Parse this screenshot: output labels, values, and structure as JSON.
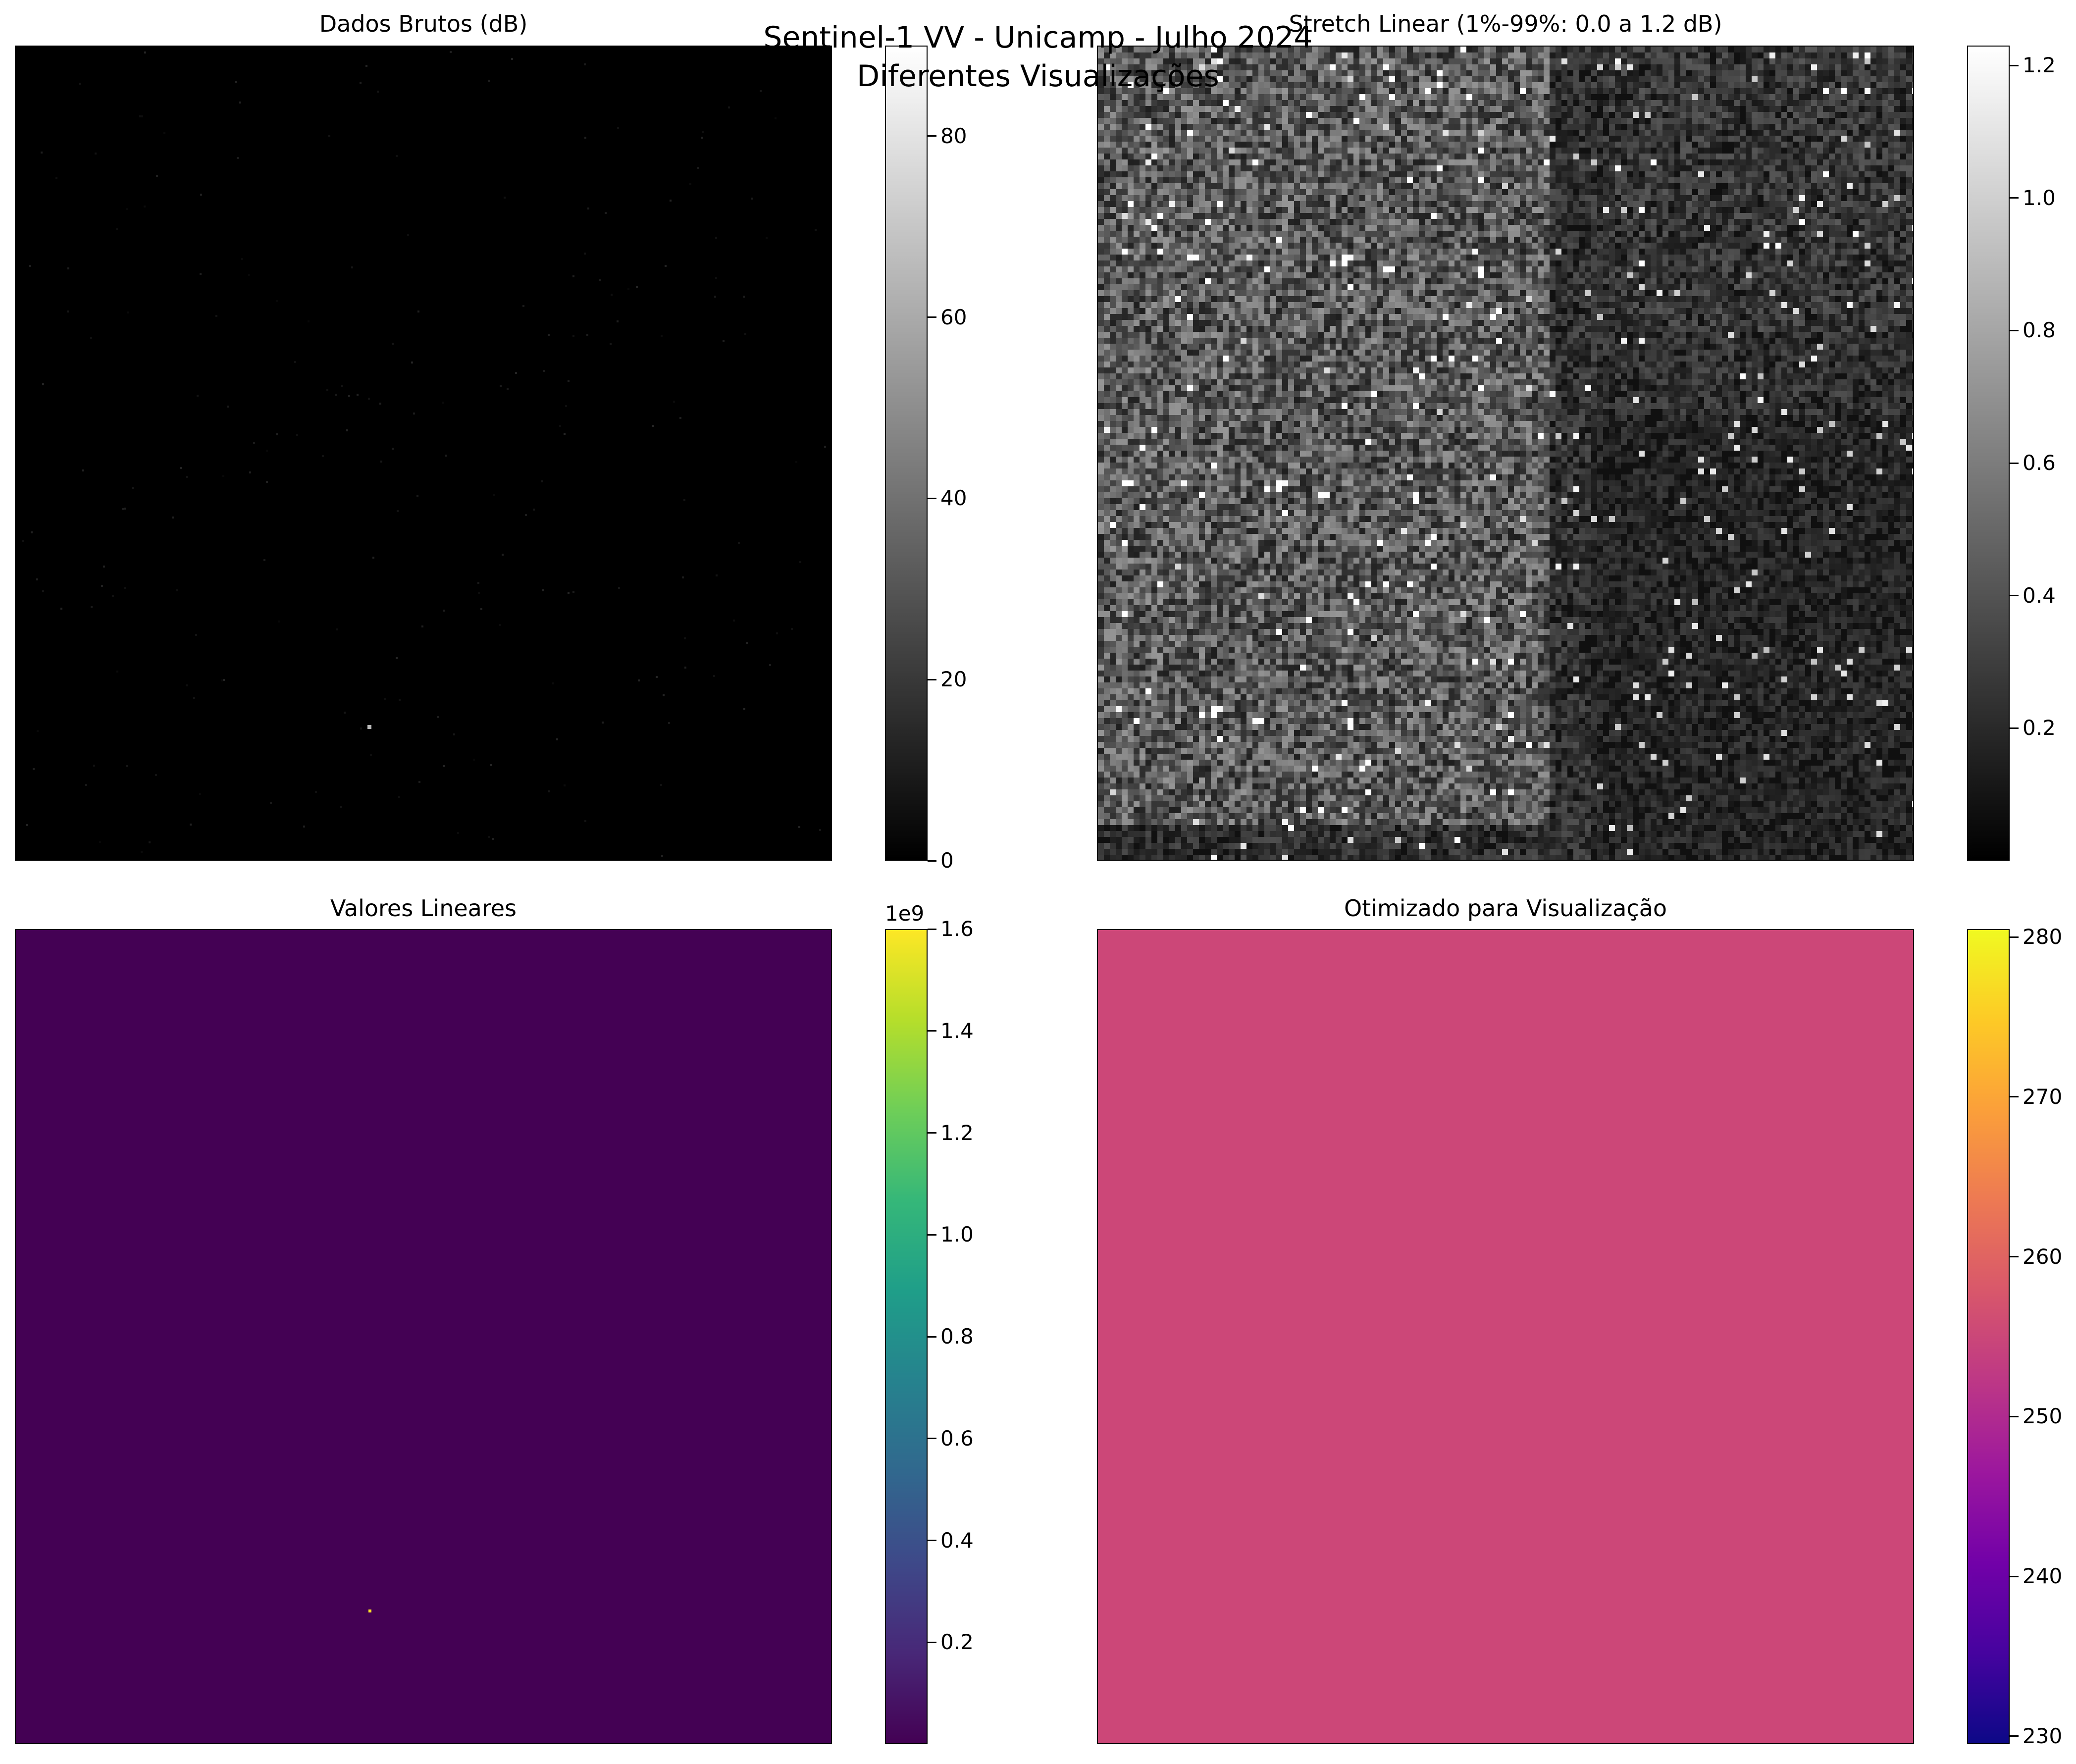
{
  "suptitle_line1": "Sentinel-1 VV - Unicamp - Julho 2024",
  "suptitle_line2": "Diferentes Visualizações",
  "chart_data": [
    {
      "type": "heatmap",
      "title": "Dados Brutos (dB)",
      "colormap": "gray",
      "colorbar": {
        "range": [
          0,
          90
        ],
        "ticks": [
          "0",
          "20",
          "40",
          "60",
          "80"
        ],
        "tick_values": [
          0,
          20,
          40,
          60,
          80
        ],
        "offset_label": ""
      },
      "axes": "off"
    },
    {
      "type": "heatmap",
      "title": "Stretch Linear (1%-99%: 0.0 a 1.2 dB)",
      "colormap": "gray",
      "colorbar": {
        "range": [
          0.0,
          1.23
        ],
        "ticks": [
          "0.2",
          "0.4",
          "0.6",
          "0.8",
          "1.0",
          "1.2"
        ],
        "tick_values": [
          0.2,
          0.4,
          0.6,
          0.8,
          1.0,
          1.2
        ],
        "offset_label": ""
      },
      "axes": "off"
    },
    {
      "type": "heatmap",
      "title": "Valores Lineares",
      "colormap": "viridis",
      "colorbar": {
        "range": [
          0.0,
          1.6
        ],
        "ticks": [
          "0.2",
          "0.4",
          "0.6",
          "0.8",
          "1.0",
          "1.2",
          "1.4",
          "1.6"
        ],
        "tick_values": [
          0.2,
          0.4,
          0.6,
          0.8,
          1.0,
          1.2,
          1.4,
          1.6
        ],
        "offset_label": "1e9"
      },
      "fill_color": "#440154",
      "axes": "off"
    },
    {
      "type": "heatmap",
      "title": "Otimizado para Visualização",
      "colormap": "plasma",
      "colorbar": {
        "range": [
          229.5,
          280.5
        ],
        "ticks": [
          "230",
          "240",
          "250",
          "260",
          "270",
          "280"
        ],
        "tick_values": [
          230,
          240,
          250,
          260,
          270,
          280
        ],
        "offset_label": ""
      },
      "fill_color": "#cc4778",
      "axes": "off"
    }
  ]
}
